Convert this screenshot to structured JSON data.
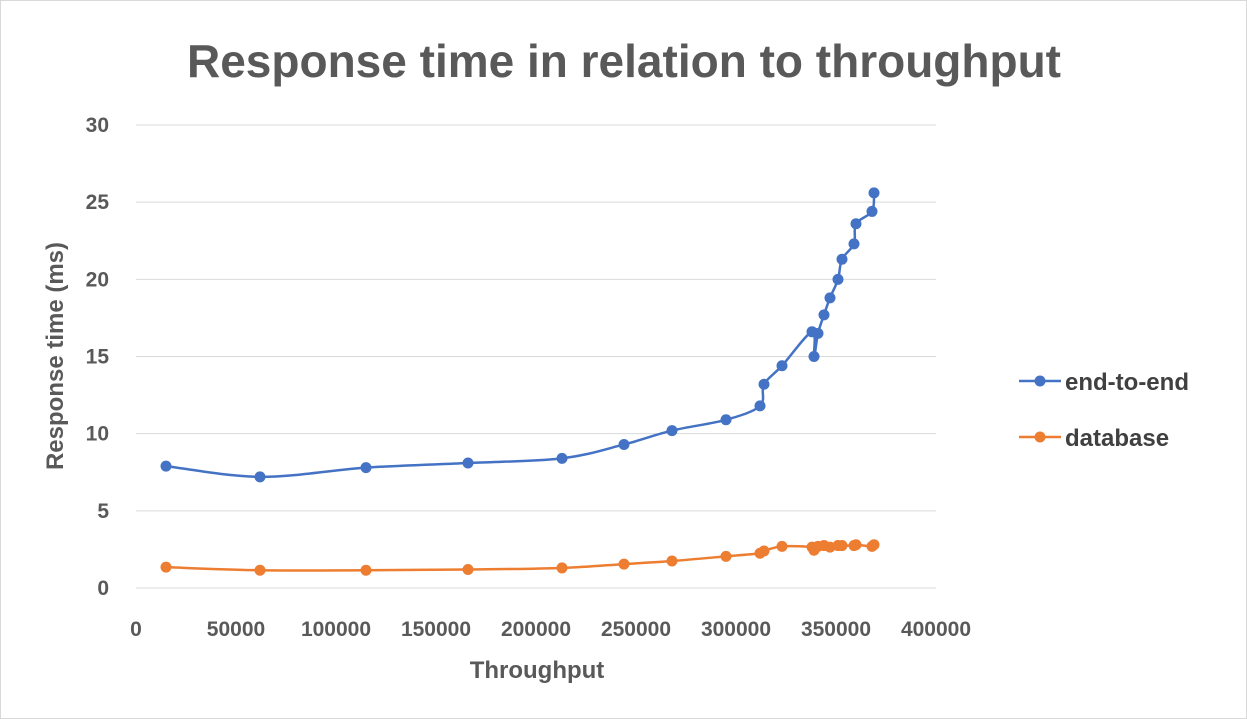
{
  "chart_data": {
    "type": "scatter",
    "title": "Response time in relation to throughput",
    "xlabel": "Throughput",
    "ylabel": "Response time (ms)",
    "xlim": [
      0,
      400000
    ],
    "ylim": [
      0,
      30
    ],
    "xticks": [
      "0",
      "50000",
      "100000",
      "150000",
      "200000",
      "250000",
      "300000",
      "350000",
      "400000"
    ],
    "yticks": [
      "0",
      "5",
      "10",
      "15",
      "20",
      "25",
      "30"
    ],
    "grid": true,
    "legend_position": "right",
    "smooth_lines": true,
    "series": [
      {
        "name": "end-to-end",
        "color": "#4472c4",
        "points": [
          [
            15000,
            7.9
          ],
          [
            62000,
            7.2
          ],
          [
            115000,
            7.8
          ],
          [
            166000,
            8.1
          ],
          [
            213000,
            8.4
          ],
          [
            244000,
            9.3
          ],
          [
            268000,
            10.2
          ],
          [
            295000,
            10.9
          ],
          [
            312000,
            11.8
          ],
          [
            314000,
            13.2
          ],
          [
            323000,
            14.4
          ],
          [
            338000,
            16.6
          ],
          [
            339000,
            15.0
          ],
          [
            341000,
            16.5
          ],
          [
            344000,
            17.7
          ],
          [
            347000,
            18.8
          ],
          [
            351000,
            20.0
          ],
          [
            353000,
            21.3
          ],
          [
            359000,
            22.3
          ],
          [
            360000,
            23.6
          ],
          [
            368000,
            24.4
          ],
          [
            369000,
            25.6
          ]
        ]
      },
      {
        "name": "database",
        "color": "#ed7d31",
        "points": [
          [
            15000,
            1.35
          ],
          [
            62000,
            1.15
          ],
          [
            115000,
            1.15
          ],
          [
            166000,
            1.2
          ],
          [
            213000,
            1.3
          ],
          [
            244000,
            1.55
          ],
          [
            268000,
            1.75
          ],
          [
            295000,
            2.05
          ],
          [
            312000,
            2.25
          ],
          [
            314000,
            2.4
          ],
          [
            323000,
            2.7
          ],
          [
            338000,
            2.65
          ],
          [
            339000,
            2.45
          ],
          [
            341000,
            2.7
          ],
          [
            344000,
            2.75
          ],
          [
            347000,
            2.65
          ],
          [
            351000,
            2.75
          ],
          [
            353000,
            2.75
          ],
          [
            359000,
            2.75
          ],
          [
            360000,
            2.8
          ],
          [
            368000,
            2.7
          ],
          [
            369000,
            2.8
          ]
        ]
      }
    ]
  }
}
